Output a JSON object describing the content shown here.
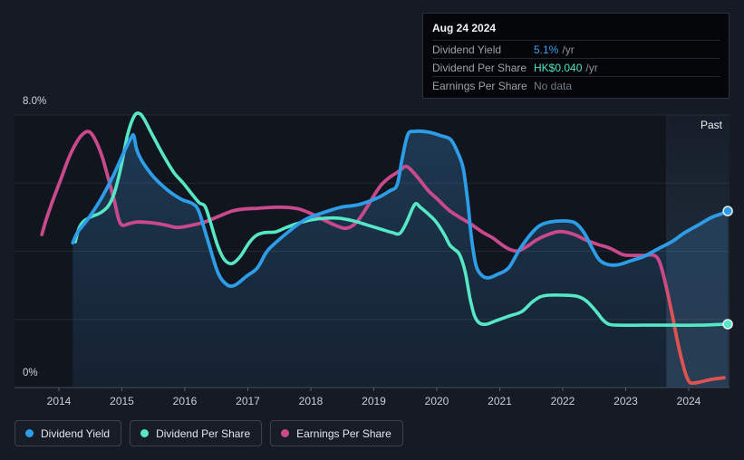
{
  "tooltip": {
    "date": "Aug 24 2024",
    "rows": [
      {
        "label": "Dividend Yield",
        "value": "5.1%",
        "suffix": "/yr",
        "color": "#3b9ff2"
      },
      {
        "label": "Dividend Per Share",
        "value": "HK$0.040",
        "suffix": "/yr",
        "color": "#50e3c2"
      },
      {
        "label": "Earnings Per Share",
        "value": "No data",
        "suffix": "",
        "color": "#737c86"
      }
    ]
  },
  "past_label": "Past",
  "axis": {
    "y_top_label": "8.0%",
    "y_bottom_label": "0%",
    "x_labels": [
      "2014",
      "2015",
      "2016",
      "2017",
      "2018",
      "2019",
      "2020",
      "2021",
      "2022",
      "2023",
      "2024"
    ]
  },
  "legend": [
    {
      "label": "Dividend Yield",
      "color": "#2e9de8"
    },
    {
      "label": "Dividend Per Share",
      "color": "#56e8c6"
    },
    {
      "label": "Earnings Per Share",
      "color": "#c9498c"
    }
  ],
  "colors": {
    "background": "#151a24",
    "plot_background": "#10151e",
    "gridline": "rgba(255,255,255,0.08)",
    "zero_axis": "#424c58",
    "dividend_yield": "#2e9de8",
    "dividend_per_share": "#56e8c6",
    "earnings_per_share": "#c9498c",
    "earnings_negative": "#e05252",
    "area_fill": "rgba(62,140,205,0.28)"
  },
  "chart_data": {
    "type": "line",
    "title": "Dividend history (yield, dividend per share, earnings per share)",
    "x_axis": {
      "tick_labels": [
        "2014",
        "2015",
        "2016",
        "2017",
        "2018",
        "2019",
        "2020",
        "2021",
        "2022",
        "2023",
        "2024"
      ],
      "range": [
        2013.6,
        2024.7
      ]
    },
    "y_axis": {
      "range_pct": [
        0,
        8
      ],
      "gridlines_pct": [
        0,
        2,
        4,
        6,
        8
      ],
      "top_label": "8.0%",
      "bottom_label": "0%"
    },
    "legend_position": "bottom",
    "past_region_start": 2023.65,
    "latest": {
      "date": "Aug 24 2024",
      "dividend_yield": "5.1% /yr",
      "dividend_per_share": "HK$0.040 /yr",
      "earnings_per_share": "No data"
    },
    "series": [
      {
        "name": "Dividend Yield",
        "unit": "percent",
        "area_fill": true,
        "end_marker": true,
        "points": [
          [
            2014.22,
            4.25
          ],
          [
            2014.3,
            4.57
          ],
          [
            2014.45,
            4.92
          ],
          [
            2014.65,
            5.48
          ],
          [
            2014.85,
            6.17
          ],
          [
            2015.04,
            6.94
          ],
          [
            2015.15,
            7.34
          ],
          [
            2015.19,
            7.39
          ],
          [
            2015.24,
            6.96
          ],
          [
            2015.34,
            6.59
          ],
          [
            2015.51,
            6.17
          ],
          [
            2015.73,
            5.79
          ],
          [
            2015.94,
            5.53
          ],
          [
            2016.12,
            5.4
          ],
          [
            2016.22,
            5.18
          ],
          [
            2016.35,
            4.41
          ],
          [
            2016.52,
            3.4
          ],
          [
            2016.66,
            3.03
          ],
          [
            2016.79,
            3.0
          ],
          [
            2016.98,
            3.27
          ],
          [
            2017.15,
            3.51
          ],
          [
            2017.28,
            3.93
          ],
          [
            2017.38,
            4.15
          ],
          [
            2017.63,
            4.55
          ],
          [
            2017.9,
            4.92
          ],
          [
            2018.19,
            5.13
          ],
          [
            2018.47,
            5.29
          ],
          [
            2018.76,
            5.37
          ],
          [
            2019.05,
            5.56
          ],
          [
            2019.25,
            5.77
          ],
          [
            2019.37,
            5.95
          ],
          [
            2019.45,
            6.72
          ],
          [
            2019.54,
            7.42
          ],
          [
            2019.64,
            7.52
          ],
          [
            2019.86,
            7.5
          ],
          [
            2020.07,
            7.39
          ],
          [
            2020.22,
            7.28
          ],
          [
            2020.33,
            6.91
          ],
          [
            2020.42,
            6.43
          ],
          [
            2020.49,
            5.48
          ],
          [
            2020.55,
            4.41
          ],
          [
            2020.62,
            3.61
          ],
          [
            2020.71,
            3.3
          ],
          [
            2020.82,
            3.22
          ],
          [
            2020.96,
            3.32
          ],
          [
            2021.14,
            3.51
          ],
          [
            2021.31,
            4.04
          ],
          [
            2021.5,
            4.52
          ],
          [
            2021.64,
            4.76
          ],
          [
            2021.8,
            4.86
          ],
          [
            2022.01,
            4.89
          ],
          [
            2022.19,
            4.84
          ],
          [
            2022.33,
            4.57
          ],
          [
            2022.46,
            4.12
          ],
          [
            2022.58,
            3.75
          ],
          [
            2022.72,
            3.61
          ],
          [
            2022.89,
            3.61
          ],
          [
            2023.08,
            3.72
          ],
          [
            2023.29,
            3.85
          ],
          [
            2023.51,
            4.07
          ],
          [
            2023.73,
            4.28
          ],
          [
            2023.94,
            4.55
          ],
          [
            2024.16,
            4.78
          ],
          [
            2024.37,
            5.0
          ],
          [
            2024.52,
            5.1
          ],
          [
            2024.62,
            5.18
          ]
        ]
      },
      {
        "name": "Dividend Per Share",
        "unit": "percent_scale_final_HK$0.040_per_yr",
        "area_fill": false,
        "end_marker": true,
        "points": [
          [
            2014.26,
            4.28
          ],
          [
            2014.32,
            4.68
          ],
          [
            2014.4,
            4.89
          ],
          [
            2014.52,
            5.02
          ],
          [
            2014.66,
            5.13
          ],
          [
            2014.78,
            5.32
          ],
          [
            2014.88,
            5.71
          ],
          [
            2014.99,
            6.51
          ],
          [
            2015.09,
            7.42
          ],
          [
            2015.19,
            7.95
          ],
          [
            2015.27,
            8.05
          ],
          [
            2015.35,
            7.89
          ],
          [
            2015.5,
            7.36
          ],
          [
            2015.67,
            6.78
          ],
          [
            2015.83,
            6.3
          ],
          [
            2015.97,
            6.01
          ],
          [
            2016.12,
            5.66
          ],
          [
            2016.23,
            5.42
          ],
          [
            2016.32,
            5.32
          ],
          [
            2016.4,
            4.89
          ],
          [
            2016.52,
            4.17
          ],
          [
            2016.63,
            3.75
          ],
          [
            2016.75,
            3.64
          ],
          [
            2016.88,
            3.85
          ],
          [
            2017.02,
            4.25
          ],
          [
            2017.14,
            4.47
          ],
          [
            2017.27,
            4.55
          ],
          [
            2017.44,
            4.57
          ],
          [
            2017.61,
            4.7
          ],
          [
            2017.78,
            4.81
          ],
          [
            2018.0,
            4.92
          ],
          [
            2018.22,
            4.97
          ],
          [
            2018.45,
            4.97
          ],
          [
            2018.68,
            4.89
          ],
          [
            2018.88,
            4.78
          ],
          [
            2019.11,
            4.65
          ],
          [
            2019.29,
            4.55
          ],
          [
            2019.41,
            4.52
          ],
          [
            2019.51,
            4.81
          ],
          [
            2019.61,
            5.24
          ],
          [
            2019.67,
            5.4
          ],
          [
            2019.74,
            5.29
          ],
          [
            2019.86,
            5.1
          ],
          [
            2019.99,
            4.86
          ],
          [
            2020.12,
            4.49
          ],
          [
            2020.2,
            4.2
          ],
          [
            2020.27,
            4.07
          ],
          [
            2020.36,
            3.91
          ],
          [
            2020.45,
            3.4
          ],
          [
            2020.53,
            2.6
          ],
          [
            2020.6,
            2.1
          ],
          [
            2020.68,
            1.89
          ],
          [
            2020.79,
            1.86
          ],
          [
            2020.95,
            1.97
          ],
          [
            2021.15,
            2.1
          ],
          [
            2021.35,
            2.23
          ],
          [
            2021.51,
            2.5
          ],
          [
            2021.64,
            2.66
          ],
          [
            2021.78,
            2.71
          ],
          [
            2022.01,
            2.71
          ],
          [
            2022.23,
            2.68
          ],
          [
            2022.37,
            2.55
          ],
          [
            2022.52,
            2.26
          ],
          [
            2022.63,
            2.0
          ],
          [
            2022.73,
            1.86
          ],
          [
            2022.88,
            1.83
          ],
          [
            2023.28,
            1.83
          ],
          [
            2023.71,
            1.83
          ],
          [
            2024.14,
            1.83
          ],
          [
            2024.58,
            1.86
          ],
          [
            2024.62,
            1.86
          ]
        ]
      },
      {
        "name": "Earnings Per Share",
        "unit": "percent_scale_no_data_at_end",
        "area_fill": false,
        "end_marker": false,
        "negative_end_color": true,
        "points": [
          [
            2013.73,
            4.49
          ],
          [
            2013.8,
            4.94
          ],
          [
            2013.9,
            5.48
          ],
          [
            2014.03,
            6.11
          ],
          [
            2014.16,
            6.75
          ],
          [
            2014.29,
            7.23
          ],
          [
            2014.4,
            7.47
          ],
          [
            2014.49,
            7.5
          ],
          [
            2014.58,
            7.26
          ],
          [
            2014.68,
            6.81
          ],
          [
            2014.78,
            6.17
          ],
          [
            2014.88,
            5.48
          ],
          [
            2014.95,
            4.94
          ],
          [
            2015.01,
            4.76
          ],
          [
            2015.11,
            4.81
          ],
          [
            2015.25,
            4.86
          ],
          [
            2015.45,
            4.84
          ],
          [
            2015.67,
            4.78
          ],
          [
            2015.88,
            4.7
          ],
          [
            2016.1,
            4.76
          ],
          [
            2016.32,
            4.86
          ],
          [
            2016.53,
            5.02
          ],
          [
            2016.75,
            5.18
          ],
          [
            2016.94,
            5.24
          ],
          [
            2017.15,
            5.26
          ],
          [
            2017.38,
            5.29
          ],
          [
            2017.61,
            5.29
          ],
          [
            2017.81,
            5.24
          ],
          [
            2018.01,
            5.1
          ],
          [
            2018.24,
            4.89
          ],
          [
            2018.43,
            4.73
          ],
          [
            2018.58,
            4.68
          ],
          [
            2018.73,
            4.86
          ],
          [
            2018.88,
            5.26
          ],
          [
            2019.01,
            5.66
          ],
          [
            2019.12,
            5.95
          ],
          [
            2019.25,
            6.17
          ],
          [
            2019.4,
            6.35
          ],
          [
            2019.5,
            6.49
          ],
          [
            2019.58,
            6.41
          ],
          [
            2019.71,
            6.14
          ],
          [
            2019.86,
            5.79
          ],
          [
            2020.01,
            5.53
          ],
          [
            2020.19,
            5.21
          ],
          [
            2020.36,
            5.0
          ],
          [
            2020.53,
            4.81
          ],
          [
            2020.72,
            4.57
          ],
          [
            2020.89,
            4.39
          ],
          [
            2021.05,
            4.17
          ],
          [
            2021.18,
            4.04
          ],
          [
            2021.29,
            4.01
          ],
          [
            2021.44,
            4.15
          ],
          [
            2021.58,
            4.33
          ],
          [
            2021.74,
            4.47
          ],
          [
            2021.9,
            4.57
          ],
          [
            2022.03,
            4.57
          ],
          [
            2022.19,
            4.49
          ],
          [
            2022.37,
            4.33
          ],
          [
            2022.56,
            4.2
          ],
          [
            2022.75,
            4.09
          ],
          [
            2022.94,
            3.91
          ],
          [
            2023.06,
            3.88
          ],
          [
            2023.28,
            3.88
          ],
          [
            2023.45,
            3.88
          ],
          [
            2023.54,
            3.67
          ],
          [
            2023.63,
            3.06
          ],
          [
            2023.73,
            2.21
          ],
          [
            2023.83,
            1.28
          ],
          [
            2023.93,
            0.53
          ],
          [
            2024.0,
            0.19
          ],
          [
            2024.06,
            0.13
          ],
          [
            2024.17,
            0.16
          ],
          [
            2024.36,
            0.24
          ],
          [
            2024.56,
            0.29
          ]
        ]
      }
    ]
  }
}
